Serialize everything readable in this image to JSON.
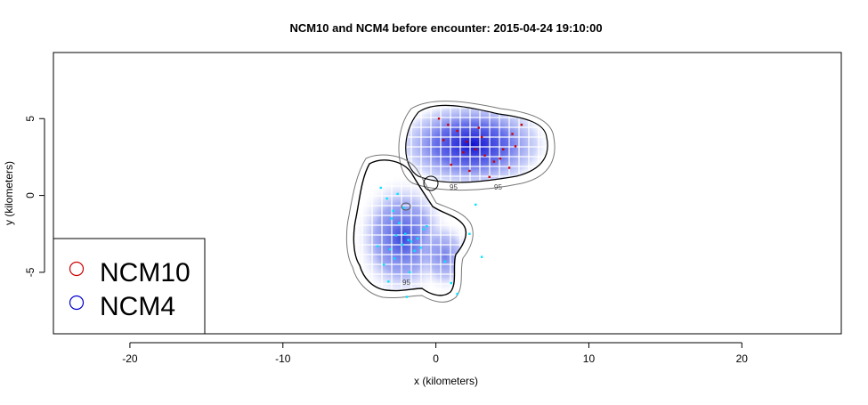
{
  "chart_data": {
    "type": "scatter",
    "title": "NCM10 and NCM4 before encounter: 2015-04-24 19:10:00",
    "xlabel": "x (kilometers)",
    "ylabel": "y (kilometers)",
    "xlim": [
      -25,
      26.5
    ],
    "ylim": [
      -9,
      9.3
    ],
    "xticks": [
      -20,
      -10,
      0,
      10,
      20
    ],
    "yticks": [
      5,
      0,
      -5
    ],
    "grid": false,
    "legend": {
      "position": "bottom-left",
      "entries": [
        "NCM10",
        "NCM4"
      ]
    },
    "colors": {
      "NCM10": "#cc0000",
      "NCM4": "#0000cc",
      "NCM10_points": "#ff2222",
      "NCM4_points": "#00e5ff"
    },
    "contour_labels": [
      "95",
      "95",
      "95"
    ],
    "series": [
      {
        "name": "NCM10",
        "color": "#cc0000",
        "x": [
          0.2,
          0.8,
          1.4,
          2.0,
          2.6,
          3.2,
          3.8,
          4.4,
          5.0,
          5.6,
          1.0,
          2.2,
          3.5,
          4.8,
          0.5,
          1.8,
          3.0,
          4.2,
          5.2,
          2.8
        ],
        "y": [
          5.0,
          4.6,
          4.2,
          3.5,
          3.0,
          2.6,
          2.2,
          3.0,
          4.0,
          4.6,
          2.0,
          1.6,
          1.2,
          1.8,
          3.6,
          2.8,
          3.8,
          2.4,
          3.2,
          4.4
        ]
      },
      {
        "name": "NCM4",
        "color": "#00e5ff",
        "x": [
          -3.6,
          -3.2,
          -2.8,
          -2.4,
          -2.0,
          -1.6,
          -1.2,
          -0.8,
          -3.0,
          -2.6,
          -2.2,
          -1.8,
          -1.4,
          -1.0,
          -3.4,
          -2.9,
          -2.5,
          -2.1,
          -1.7,
          -3.1,
          -0.6,
          0.6,
          1.0,
          1.4,
          2.2,
          2.6,
          3.0,
          -3.8,
          -2.7,
          -1.9
        ],
        "y": [
          0.5,
          -0.2,
          -1.0,
          -1.8,
          -2.5,
          -3.0,
          -2.8,
          -2.2,
          -3.5,
          -2.6,
          -3.2,
          -2.9,
          -3.6,
          -3.4,
          -4.5,
          -1.5,
          0.1,
          -0.8,
          -5.0,
          -5.6,
          -2.0,
          -4.3,
          -5.7,
          -6.4,
          -2.5,
          -0.6,
          -4.0,
          -3.3,
          -4.1,
          -6.6
        ]
      }
    ]
  }
}
